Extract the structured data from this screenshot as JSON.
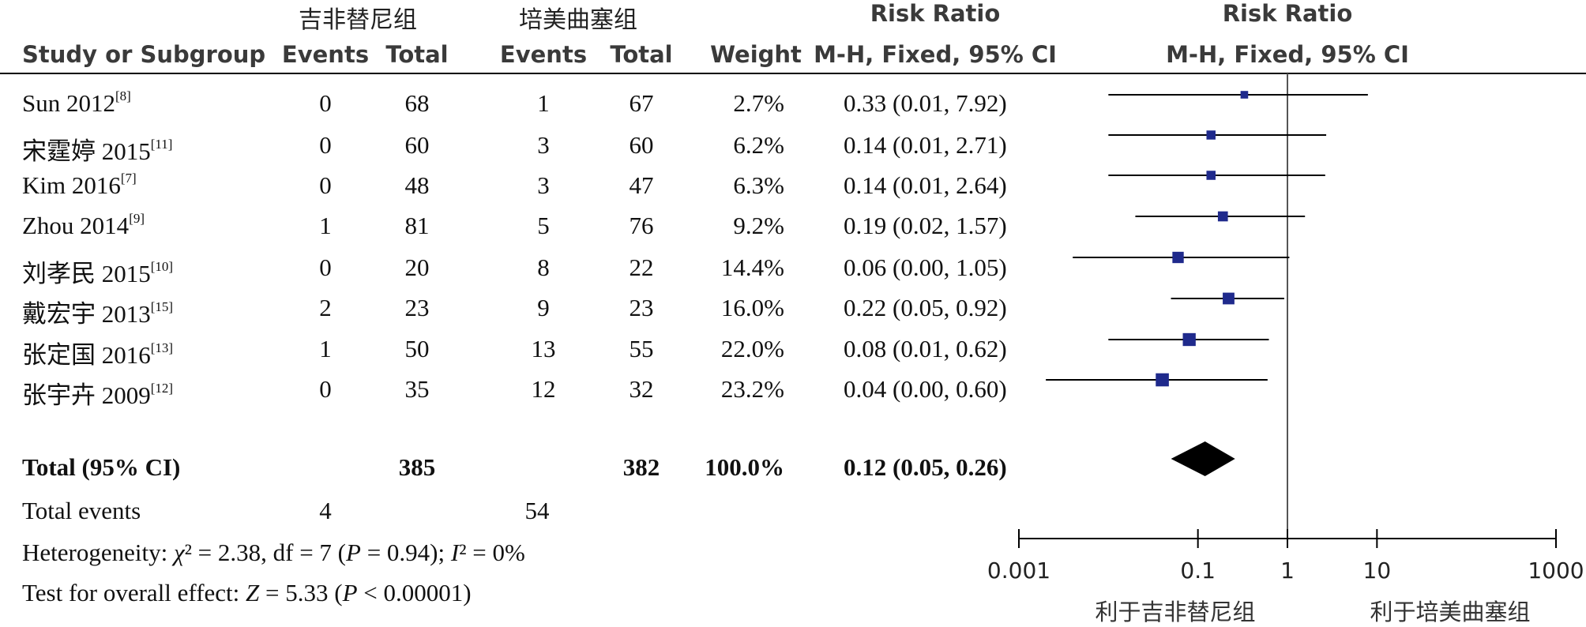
{
  "header": {
    "group1": "吉非替尼组",
    "group2": "培美曲塞组",
    "risk_ratio_left": "Risk Ratio",
    "risk_ratio_right": "Risk Ratio",
    "study_col": "Study or Subgroup",
    "events1": "Events",
    "total1": "Total",
    "events2": "Events",
    "total2": "Total",
    "weight": "Weight",
    "method_left": "M-H, Fixed, 95% CI",
    "method_right": "M-H, Fixed, 95% CI"
  },
  "studies": [
    {
      "name": "Sun 2012",
      "ref": "[8]",
      "e1": "0",
      "n1": "68",
      "e2": "1",
      "n2": "67",
      "weight": "2.7%",
      "ci": "0.33 (0.01, 7.92)"
    },
    {
      "name": "宋霆婷 2015",
      "ref": "[11]",
      "e1": "0",
      "n1": "60",
      "e2": "3",
      "n2": "60",
      "weight": "6.2%",
      "ci": "0.14 (0.01, 2.71)"
    },
    {
      "name": "Kim 2016",
      "ref": "[7]",
      "e1": "0",
      "n1": "48",
      "e2": "3",
      "n2": "47",
      "weight": "6.3%",
      "ci": "0.14 (0.01, 2.64)"
    },
    {
      "name": "Zhou 2014",
      "ref": "[9]",
      "e1": "1",
      "n1": "81",
      "e2": "5",
      "n2": "76",
      "weight": "9.2%",
      "ci": "0.19 (0.02, 1.57)"
    },
    {
      "name": "刘孝民 2015",
      "ref": "[10]",
      "e1": "0",
      "n1": "20",
      "e2": "8",
      "n2": "22",
      "weight": "14.4%",
      "ci": "0.06 (0.00, 1.05)"
    },
    {
      "name": "戴宏宇 2013",
      "ref": "[15]",
      "e1": "2",
      "n1": "23",
      "e2": "9",
      "n2": "23",
      "weight": "16.0%",
      "ci": "0.22 (0.05, 0.92)"
    },
    {
      "name": "张定国 2016",
      "ref": "[13]",
      "e1": "1",
      "n1": "50",
      "e2": "13",
      "n2": "55",
      "weight": "22.0%",
      "ci": "0.08 (0.01, 0.62)"
    },
    {
      "name": "张宇卉 2009",
      "ref": "[12]",
      "e1": "0",
      "n1": "35",
      "e2": "12",
      "n2": "32",
      "weight": "23.2%",
      "ci": "0.04 (0.00, 0.60)"
    }
  ],
  "total": {
    "label": "Total (95% CI)",
    "n1": "385",
    "n2": "382",
    "weight": "100.0%",
    "ci": "0.12 (0.05, 0.26)"
  },
  "total_events": {
    "label": "Total events",
    "e1": "4",
    "e2": "54"
  },
  "heterogeneity": {
    "prefix": "Heterogeneity: ",
    "chi": "χ",
    "chi_rest": "² = 2.38, df = 7 (",
    "p": "P",
    "p_rest": " = 0.94); ",
    "i": "I",
    "i_rest": "² = 0%"
  },
  "overall": {
    "prefix": "Test for overall effect: ",
    "z": "Z",
    "z_rest": " = 5.33 (",
    "p": "P",
    "p_rest": " < 0.00001)"
  },
  "axis": {
    "ticks": [
      "0.001",
      "0.1",
      "1",
      "10",
      "1000"
    ],
    "favours_left": "利于吉非替尼组",
    "favours_right": "利于培美曲塞组"
  },
  "colors": {
    "marker": "#1f2a8c",
    "diamond": "#000000",
    "line": "#000000"
  },
  "chart_data": {
    "type": "forest",
    "scale": "log",
    "xlim": [
      0.001,
      1000
    ],
    "null_value": 1,
    "studies": [
      {
        "name": "Sun 2012",
        "rr": 0.33,
        "lo": 0.01,
        "hi": 7.92,
        "weight": 2.7
      },
      {
        "name": "宋霆婷 2015",
        "rr": 0.14,
        "lo": 0.01,
        "hi": 2.71,
        "weight": 6.2
      },
      {
        "name": "Kim 2016",
        "rr": 0.14,
        "lo": 0.01,
        "hi": 2.64,
        "weight": 6.3
      },
      {
        "name": "Zhou 2014",
        "rr": 0.19,
        "lo": 0.02,
        "hi": 1.57,
        "weight": 9.2
      },
      {
        "name": "刘孝民 2015",
        "rr": 0.06,
        "lo": 0.004,
        "hi": 1.05,
        "weight": 14.4
      },
      {
        "name": "戴宏宇 2013",
        "rr": 0.22,
        "lo": 0.05,
        "hi": 0.92,
        "weight": 16.0
      },
      {
        "name": "张定国 2016",
        "rr": 0.08,
        "lo": 0.01,
        "hi": 0.62,
        "weight": 22.0
      },
      {
        "name": "张宇卉 2009",
        "rr": 0.04,
        "lo": 0.002,
        "hi": 0.6,
        "weight": 23.2
      }
    ],
    "pooled": {
      "rr": 0.12,
      "lo": 0.05,
      "hi": 0.26
    }
  }
}
